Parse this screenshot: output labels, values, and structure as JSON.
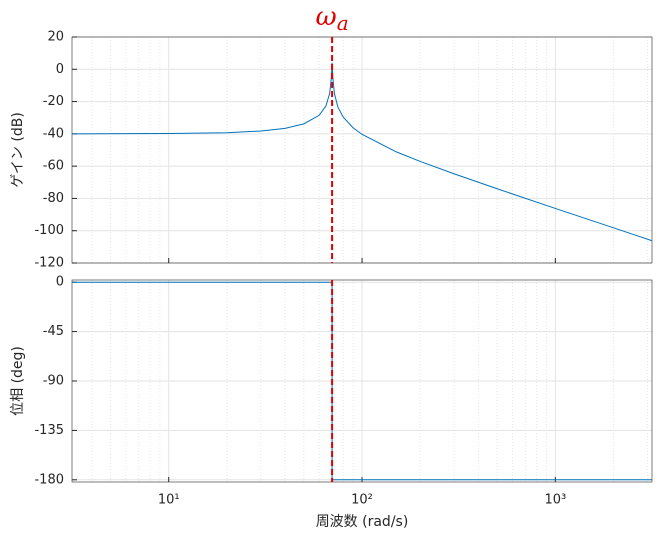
{
  "chart_data": [
    {
      "type": "line",
      "xscale": "log",
      "ylabel": "ゲイン (dB)",
      "grid": true,
      "minor_grid": true,
      "xlim": [
        3.16,
        3162
      ],
      "xticks": [
        10,
        100,
        1000
      ],
      "ylim": [
        -120,
        20
      ],
      "yticks": [
        20,
        0,
        -20,
        -40,
        -60,
        -80,
        -100,
        -120
      ],
      "x": [
        3.16,
        10,
        20,
        30,
        40,
        50,
        60,
        65,
        68,
        69.3,
        70,
        70.7,
        72,
        75,
        80,
        90,
        100,
        150,
        200,
        300,
        500,
        1000,
        2000,
        3162
      ],
      "series": [
        {
          "color": "#0072bd",
          "values": [
            -40.0,
            -39.8,
            -39.3,
            -38.2,
            -36.6,
            -33.8,
            -28.5,
            -22.8,
            -15.0,
            -6.0,
            4,
            -6.0,
            -15.1,
            -23.4,
            -29.7,
            -36.3,
            -40.3,
            -51.1,
            -57.1,
            -64.8,
            -74.0,
            -86.2,
            -98.2,
            -106.2
          ]
        }
      ],
      "vline": {
        "x": 70,
        "color": "#e00000",
        "label": "ω",
        "subscript": "a"
      }
    },
    {
      "type": "line",
      "xscale": "log",
      "ylabel": "位相 (deg)",
      "xlabel": "周波数 (rad/s)",
      "grid": true,
      "minor_grid": true,
      "xlim": [
        3.16,
        3162
      ],
      "xticks": [
        {
          "value": 10,
          "label": "10¹"
        },
        {
          "value": 100,
          "label": "10²"
        },
        {
          "value": 1000,
          "label": "10³"
        }
      ],
      "ylim": [
        -182,
        2
      ],
      "yticks": [
        0,
        -45,
        -90,
        -135,
        -180
      ],
      "x": [
        3.16,
        70,
        70,
        3162
      ],
      "series": [
        {
          "color": "#0072bd",
          "values": [
            0,
            0,
            -180,
            -180
          ]
        }
      ]
    }
  ]
}
